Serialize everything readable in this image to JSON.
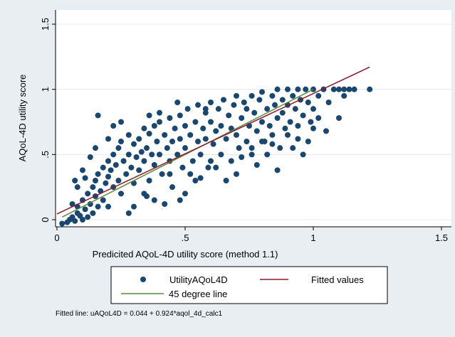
{
  "chart_data": {
    "type": "scatter",
    "xlabel": "Predicited AQoL-4D utility score (method 1.1)",
    "ylabel": "AQoL-4D utility score",
    "xlim": [
      0,
      1.5
    ],
    "ylim": [
      -0.05,
      1.5
    ],
    "xticks": [
      {
        "value": 0,
        "label": "0"
      },
      {
        "value": 0.5,
        "label": ".5"
      },
      {
        "value": 1,
        "label": "1"
      },
      {
        "value": 1.5,
        "label": "1.5"
      }
    ],
    "yticks": [
      {
        "value": 0,
        "label": "0"
      },
      {
        "value": 0.5,
        "label": ".5"
      },
      {
        "value": 1,
        "label": "1"
      },
      {
        "value": 1.5,
        "label": "1.5"
      }
    ],
    "grid": true,
    "legend_position": "bottom",
    "series": [
      {
        "name": "UtilityAQoL4D",
        "kind": "scatter",
        "color": "#1a476f",
        "points": [
          [
            0.02,
            -0.03
          ],
          [
            0.04,
            -0.02
          ],
          [
            0.05,
            0.0
          ],
          [
            0.06,
            0.02
          ],
          [
            0.07,
            -0.01
          ],
          [
            0.08,
            0.05
          ],
          [
            0.08,
            0.1
          ],
          [
            0.09,
            0.03
          ],
          [
            0.1,
            0.0
          ],
          [
            0.1,
            0.15
          ],
          [
            0.11,
            0.08
          ],
          [
            0.12,
            0.2
          ],
          [
            0.12,
            0.02
          ],
          [
            0.13,
            0.12
          ],
          [
            0.14,
            0.25
          ],
          [
            0.14,
            0.05
          ],
          [
            0.15,
            0.3
          ],
          [
            0.15,
            0.18
          ],
          [
            0.16,
            0.1
          ],
          [
            0.16,
            0.35
          ],
          [
            0.17,
            0.22
          ],
          [
            0.18,
            0.4
          ],
          [
            0.18,
            0.15
          ],
          [
            0.19,
            0.28
          ],
          [
            0.2,
            0.45
          ],
          [
            0.2,
            0.33
          ],
          [
            0.2,
            0.1
          ],
          [
            0.21,
            0.38
          ],
          [
            0.22,
            0.5
          ],
          [
            0.22,
            0.25
          ],
          [
            0.23,
            0.42
          ],
          [
            0.24,
            0.55
          ],
          [
            0.24,
            0.3
          ],
          [
            0.25,
            0.2
          ],
          [
            0.25,
            0.6
          ],
          [
            0.26,
            0.45
          ],
          [
            0.27,
            0.35
          ],
          [
            0.28,
            0.65
          ],
          [
            0.28,
            0.5
          ],
          [
            0.29,
            0.4
          ],
          [
            0.3,
            0.58
          ],
          [
            0.3,
            0.28
          ],
          [
            0.31,
            0.48
          ],
          [
            0.32,
            0.62
          ],
          [
            0.32,
            0.38
          ],
          [
            0.33,
            0.52
          ],
          [
            0.34,
            0.7
          ],
          [
            0.34,
            0.45
          ],
          [
            0.35,
            0.55
          ],
          [
            0.36,
            0.3
          ],
          [
            0.36,
            0.66
          ],
          [
            0.37,
            0.5
          ],
          [
            0.38,
            0.72
          ],
          [
            0.38,
            0.42
          ],
          [
            0.39,
            0.6
          ],
          [
            0.4,
            0.5
          ],
          [
            0.4,
            0.75
          ],
          [
            0.41,
            0.35
          ],
          [
            0.42,
            0.65
          ],
          [
            0.43,
            0.55
          ],
          [
            0.44,
            0.78
          ],
          [
            0.44,
            0.45
          ],
          [
            0.45,
            0.6
          ],
          [
            0.46,
            0.7
          ],
          [
            0.47,
            0.5
          ],
          [
            0.48,
            0.8
          ],
          [
            0.48,
            0.62
          ],
          [
            0.49,
            0.4
          ],
          [
            0.5,
            0.72
          ],
          [
            0.5,
            0.55
          ],
          [
            0.51,
            0.85
          ],
          [
            0.52,
            0.65
          ],
          [
            0.53,
            0.45
          ],
          [
            0.54,
            0.75
          ],
          [
            0.55,
            0.6
          ],
          [
            0.55,
            0.88
          ],
          [
            0.56,
            0.5
          ],
          [
            0.57,
            0.7
          ],
          [
            0.58,
            0.82
          ],
          [
            0.58,
            0.62
          ],
          [
            0.59,
            0.4
          ],
          [
            0.6,
            0.75
          ],
          [
            0.6,
            0.9
          ],
          [
            0.61,
            0.58
          ],
          [
            0.62,
            0.68
          ],
          [
            0.63,
            0.85
          ],
          [
            0.64,
            0.5
          ],
          [
            0.64,
            0.72
          ],
          [
            0.65,
            0.92
          ],
          [
            0.66,
            0.62
          ],
          [
            0.67,
            0.8
          ],
          [
            0.68,
            0.45
          ],
          [
            0.68,
            0.7
          ],
          [
            0.69,
            0.88
          ],
          [
            0.7,
            0.65
          ],
          [
            0.7,
            0.95
          ],
          [
            0.71,
            0.55
          ],
          [
            0.72,
            0.78
          ],
          [
            0.73,
            0.9
          ],
          [
            0.74,
            0.6
          ],
          [
            0.74,
            0.85
          ],
          [
            0.75,
            0.72
          ],
          [
            0.76,
            0.95
          ],
          [
            0.76,
            0.5
          ],
          [
            0.77,
            0.82
          ],
          [
            0.78,
            0.68
          ],
          [
            0.79,
            0.92
          ],
          [
            0.8,
            0.75
          ],
          [
            0.8,
            0.98
          ],
          [
            0.81,
            0.6
          ],
          [
            0.82,
            0.85
          ],
          [
            0.83,
            0.72
          ],
          [
            0.84,
            0.95
          ],
          [
            0.84,
            0.65
          ],
          [
            0.85,
            0.88
          ],
          [
            0.86,
            1.0
          ],
          [
            0.86,
            0.78
          ],
          [
            0.87,
            0.55
          ],
          [
            0.88,
            0.92
          ],
          [
            0.88,
            0.82
          ],
          [
            0.89,
            0.7
          ],
          [
            0.9,
            1.0
          ],
          [
            0.9,
            0.88
          ],
          [
            0.91,
            0.75
          ],
          [
            0.92,
            0.95
          ],
          [
            0.93,
            0.85
          ],
          [
            0.94,
            1.0
          ],
          [
            0.94,
            0.72
          ],
          [
            0.95,
            0.92
          ],
          [
            0.96,
            0.8
          ],
          [
            0.97,
            1.0
          ],
          [
            0.98,
            0.9
          ],
          [
            0.99,
            0.75
          ],
          [
            1.0,
            1.0
          ],
          [
            1.0,
            0.85
          ],
          [
            1.02,
            0.95
          ],
          [
            1.04,
            1.0
          ],
          [
            1.05,
            0.68
          ],
          [
            1.06,
            0.9
          ],
          [
            1.08,
            1.0
          ],
          [
            1.1,
            1.0
          ],
          [
            1.1,
            0.78
          ],
          [
            1.12,
            1.0
          ],
          [
            1.14,
            1.0
          ],
          [
            1.16,
            1.0
          ],
          [
            1.22,
            1.0
          ],
          [
            0.16,
            0.8
          ],
          [
            0.42,
            0.12
          ],
          [
            0.45,
            0.25
          ],
          [
            0.5,
            0.2
          ],
          [
            0.48,
            0.15
          ],
          [
            0.86,
            0.38
          ],
          [
            0.54,
            0.3
          ],
          [
            0.3,
            0.1
          ],
          [
            0.35,
            0.18
          ],
          [
            0.28,
            0.05
          ],
          [
            0.62,
            0.4
          ],
          [
            0.66,
            0.3
          ],
          [
            0.7,
            0.35
          ],
          [
            0.78,
            0.42
          ],
          [
            0.82,
            0.5
          ],
          [
            0.92,
            0.55
          ],
          [
            0.98,
            0.6
          ],
          [
            0.96,
            0.5
          ],
          [
            1.12,
            0.95
          ],
          [
            0.58,
            0.85
          ],
          [
            0.47,
            0.9
          ],
          [
            0.4,
            0.82
          ],
          [
            0.36,
            0.8
          ],
          [
            0.25,
            0.75
          ],
          [
            0.22,
            0.72
          ],
          [
            0.2,
            0.62
          ],
          [
            0.13,
            0.48
          ],
          [
            0.1,
            0.38
          ],
          [
            0.08,
            0.25
          ],
          [
            0.15,
            0.55
          ],
          [
            0.07,
            0.3
          ],
          [
            0.06,
            0.12
          ],
          [
            0.11,
            0.32
          ],
          [
            0.34,
            0.2
          ],
          [
            0.38,
            0.15
          ],
          [
            0.44,
            0.35
          ],
          [
            0.52,
            0.35
          ],
          [
            0.56,
            0.32
          ],
          [
            0.6,
            0.45
          ],
          [
            0.72,
            0.48
          ],
          [
            0.76,
            0.55
          ],
          [
            0.8,
            0.6
          ],
          [
            0.84,
            0.58
          ],
          [
            0.9,
            0.65
          ],
          [
            0.94,
            0.62
          ],
          [
            1.02,
            0.78
          ],
          [
            1.0,
            0.7
          ]
        ]
      },
      {
        "name": "Fitted values",
        "kind": "line",
        "color": "#8b1a2b",
        "x": [
          0.0,
          1.22
        ],
        "y": [
          0.044,
          1.171
        ]
      },
      {
        "name": "45 degree line",
        "kind": "line",
        "color": "#5a8a3a",
        "x": [
          0.02,
          1.0
        ],
        "y": [
          0.02,
          1.0
        ]
      }
    ],
    "note": "Fitted line: uAQoL4D = 0.044 + 0.924*aqol_4d_calc1"
  }
}
